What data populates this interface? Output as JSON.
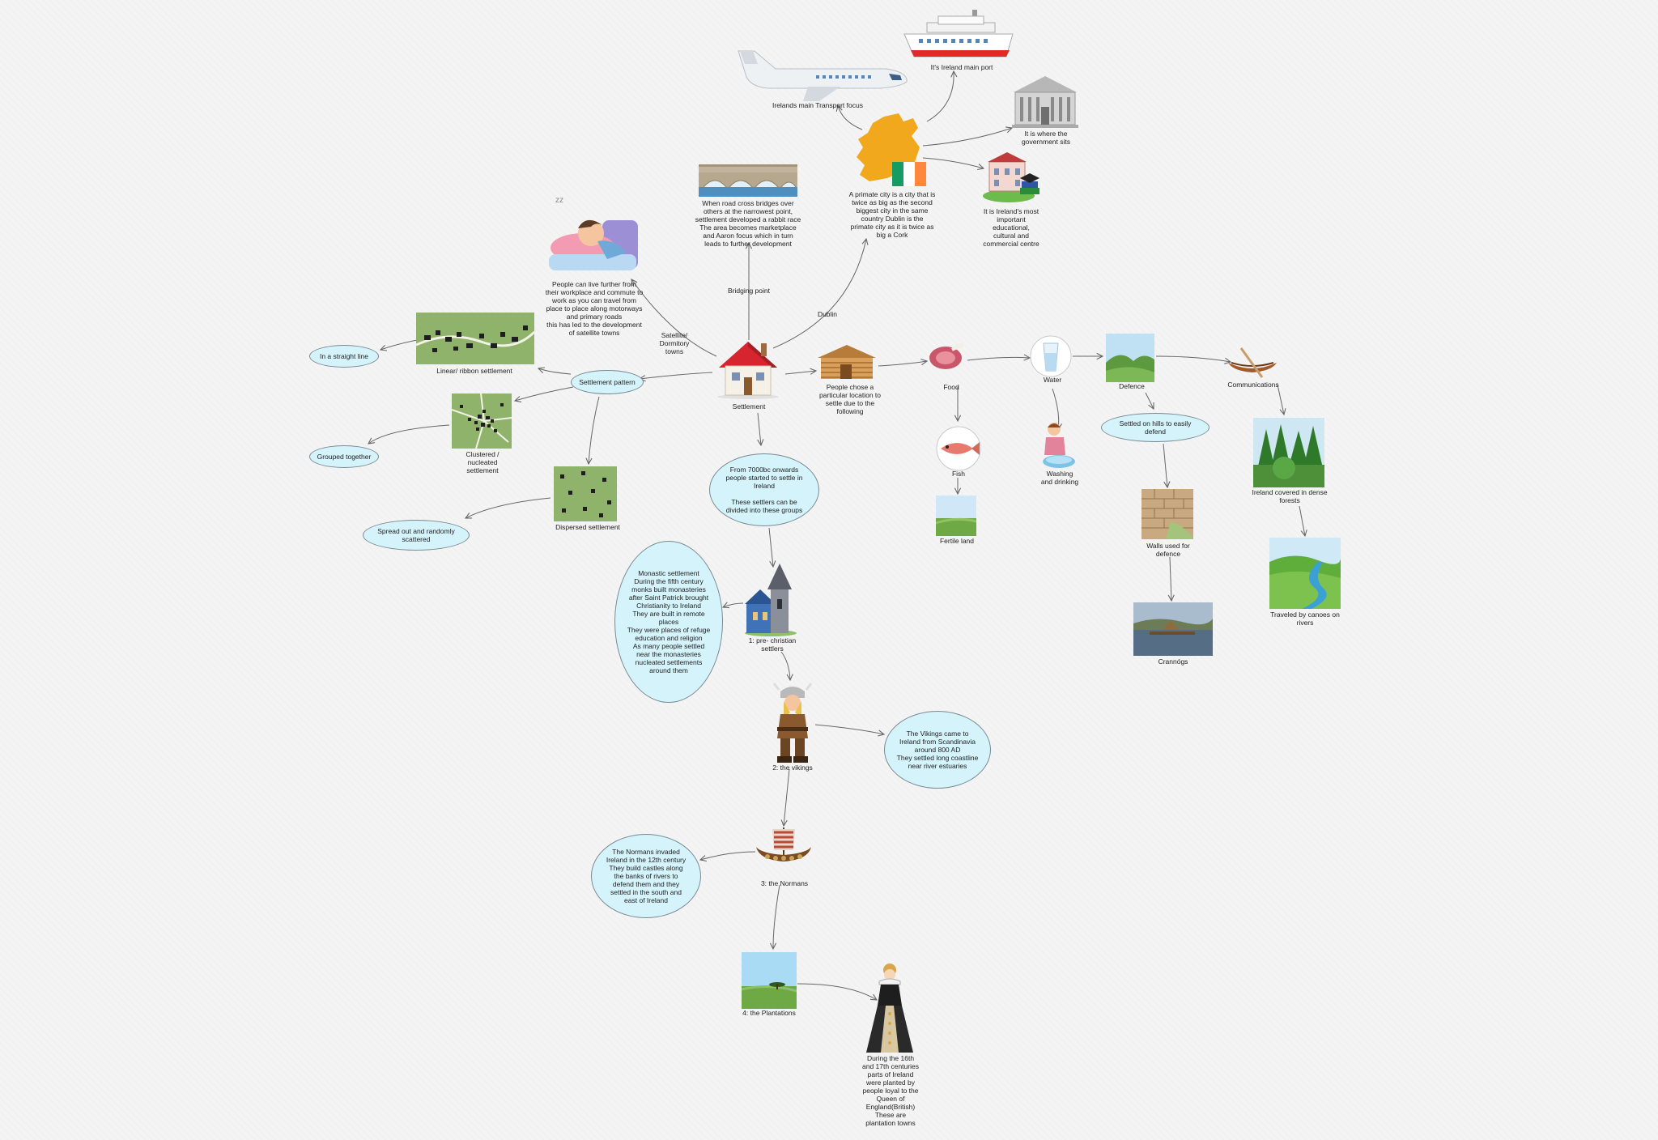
{
  "colors": {
    "bubble_fill": "#d4f3fb",
    "bubble_border": "#7b8a92",
    "connector": "#666666",
    "flag_green": "#169b62",
    "flag_orange": "#ff883e",
    "ireland_map": "#f2a81d"
  },
  "center": {
    "label": "Settlement",
    "icon": "house-icon"
  },
  "edge_labels": {
    "bridging": "Bridging point",
    "dublin": "Dublin",
    "satellite": "Satellite/\nDormitory\ntowns"
  },
  "bridging": {
    "icon": "bridge-icon",
    "text": "When road cross bridges over\nothers at the narrowest point,\nsettlement developed a rabbit race\nThe area becomes marketplace\nand Aaron focus which in turn\nleads to further development"
  },
  "satellite": {
    "icon": "sleeping-person-icon",
    "text": "People can live further from\ntheir workplace and commute to\nwork as you can travel from\nplace to place along motorways\nand primary roads\nthis has led to the development\nof satellite towns"
  },
  "dublin": {
    "icon": "ireland-map-icon",
    "text": "A primate city is a city that is\ntwice as big as the second\nbiggest city in the same\ncountry Dublin is the\nprimate city as it is twice as\nbig a Cork",
    "transport": {
      "icon": "airplane-icon",
      "text": "Irelands main Transport focus"
    },
    "port": {
      "icon": "ship-icon",
      "text": "It's Ireland main port"
    },
    "government": {
      "icon": "government-building-icon",
      "text": "It is where the\ngovernment sits"
    },
    "education": {
      "icon": "university-icon",
      "text": "It is Ireland's most\nimportant\neducational,\ncultural and\ncommercial centre"
    }
  },
  "pattern": {
    "label": "Settlement pattern",
    "linear": {
      "label": "Linear/ ribbon  settlement",
      "note": "In a straight line"
    },
    "clustered": {
      "label": "Clustered /\nnucleated\nsettlement",
      "note": "Grouped together"
    },
    "dispersed": {
      "label": "Dispersed settlement",
      "note": "Spread out and randomly\nscattered"
    }
  },
  "location": {
    "icon": "log-cabin-icon",
    "text": "People chose a\nparticular location to\nsettle due to the\nfollowing",
    "food": {
      "label": "Food",
      "icon": "meat-icon"
    },
    "fish": {
      "label": "Fish",
      "icon": "fish-icon"
    },
    "fertile": {
      "label": "Fertile land",
      "icon": "field-icon"
    },
    "water": {
      "label": "Water",
      "icon": "water-glass-icon"
    },
    "washing": {
      "label": "Washing\nand drinking",
      "icon": "washing-icon"
    },
    "defence": {
      "label": "Defence",
      "icon": "hills-icon"
    },
    "hills": {
      "label": "Settled on hills to easily\ndefend"
    },
    "walls": {
      "label": "Walls used for\ndefence",
      "icon": "stone-wall-icon"
    },
    "crannogs": {
      "label": "Crannógs",
      "icon": "crannog-icon"
    },
    "communications": {
      "label": "Communications",
      "icon": "canoe-icon"
    },
    "forest": {
      "label": "Ireland covered in dense\nforests",
      "icon": "forest-icon"
    },
    "canoes": {
      "label": "Traveled by canoes on\nrivers",
      "icon": "river-icon"
    }
  },
  "history": {
    "intro": "From 7000bc onwards\npeople started to settle in\nIreland\n\nThese settlers can be\ndivided into these groups",
    "christian": {
      "label": "1: pre- christian\nsettlers",
      "icon": "church-icon",
      "text": "Monastic settlement\nDuring the fifth century\nmonks built monasteries\nafter Saint Patrick brought\nChristianity to Ireland\nThey are built in remote\nplaces\nThey were places of refuge\neducation and religion\nAs many people settled\nnear the monasteries\nnucleated settlements\naround them"
    },
    "vikings": {
      "label": "2: the vikings",
      "icon": "viking-icon",
      "text": "The Vikings came to\nIreland from Scandinavia\naround 800 AD\nThey settled long coastline\nnear river estuaries"
    },
    "normans": {
      "label": "3: the Normans",
      "icon": "longship-icon",
      "text": "The Normans invaded\nIreland in the 12th century\nThey build castles along\nthe banks of rivers to\ndefend them and they\nsettled in the south and\neast of Ireland"
    },
    "plantations": {
      "label": "4: the Plantations",
      "icon": "landscape-icon",
      "queen_icon": "queen-icon",
      "text": "During the 16th\nand 17th centuries\nparts of Ireland\nwere planted by\npeople loyal to the\nQueen of\nEngland(British)\nThese are\nplantation towns"
    }
  }
}
